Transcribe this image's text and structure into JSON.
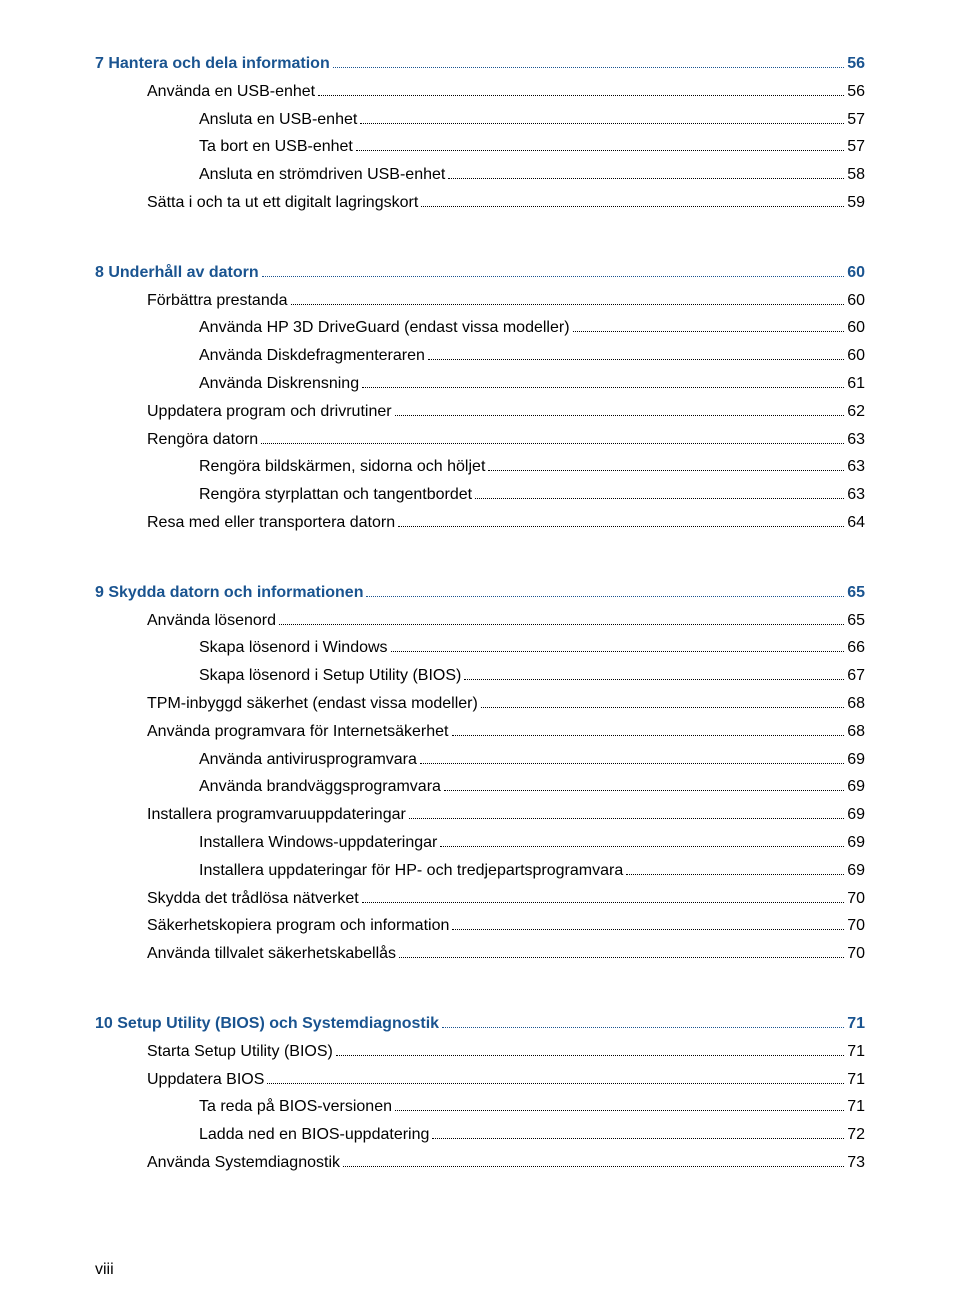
{
  "colors": {
    "chapter": "#1a5490",
    "text": "#000000",
    "background": "#ffffff"
  },
  "typography": {
    "font_family": "Arial",
    "font_size_pt": 12,
    "chapter_weight": "bold"
  },
  "page_footer": "viii",
  "entries": [
    {
      "level": 0,
      "text": "7  Hantera och dela information",
      "page": "56",
      "gap_before": false
    },
    {
      "level": 1,
      "text": "Använda en USB-enhet",
      "page": "56"
    },
    {
      "level": 2,
      "text": "Ansluta en USB-enhet",
      "page": "57"
    },
    {
      "level": 2,
      "text": "Ta bort en USB-enhet",
      "page": "57"
    },
    {
      "level": 2,
      "text": "Ansluta en strömdriven USB-enhet",
      "page": "58"
    },
    {
      "level": 1,
      "text": "Sätta i och ta ut ett digitalt lagringskort",
      "page": "59"
    },
    {
      "level": 0,
      "text": "8  Underhåll av datorn",
      "page": "60",
      "gap_before": true
    },
    {
      "level": 1,
      "text": "Förbättra prestanda",
      "page": "60"
    },
    {
      "level": 2,
      "text": "Använda HP 3D DriveGuard (endast vissa modeller)",
      "page": "60"
    },
    {
      "level": 2,
      "text": "Använda Diskdefragmenteraren",
      "page": "60"
    },
    {
      "level": 2,
      "text": "Använda Diskrensning",
      "page": "61"
    },
    {
      "level": 1,
      "text": "Uppdatera program och drivrutiner",
      "page": "62"
    },
    {
      "level": 1,
      "text": "Rengöra datorn",
      "page": "63"
    },
    {
      "level": 2,
      "text": "Rengöra bildskärmen, sidorna och höljet",
      "page": "63"
    },
    {
      "level": 2,
      "text": "Rengöra styrplattan och tangentbordet",
      "page": "63"
    },
    {
      "level": 1,
      "text": "Resa med eller transportera datorn",
      "page": "64"
    },
    {
      "level": 0,
      "text": "9  Skydda datorn och informationen",
      "page": "65",
      "gap_before": true
    },
    {
      "level": 1,
      "text": "Använda lösenord",
      "page": "65"
    },
    {
      "level": 2,
      "text": "Skapa lösenord i Windows",
      "page": "66"
    },
    {
      "level": 2,
      "text": "Skapa lösenord i Setup Utility (BIOS)",
      "page": "67"
    },
    {
      "level": 1,
      "text": "TPM-inbyggd säkerhet (endast vissa modeller)",
      "page": "68"
    },
    {
      "level": 1,
      "text": "Använda programvara för Internetsäkerhet",
      "page": "68"
    },
    {
      "level": 2,
      "text": "Använda antivirusprogramvara",
      "page": "69"
    },
    {
      "level": 2,
      "text": "Använda brandväggsprogramvara",
      "page": "69"
    },
    {
      "level": 1,
      "text": "Installera programvaruuppdateringar",
      "page": "69"
    },
    {
      "level": 2,
      "text": "Installera Windows-uppdateringar",
      "page": "69"
    },
    {
      "level": 2,
      "text": "Installera uppdateringar för HP- och tredjepartsprogramvara",
      "page": "69"
    },
    {
      "level": 1,
      "text": "Skydda det trådlösa nätverket",
      "page": "70"
    },
    {
      "level": 1,
      "text": "Säkerhetskopiera program och information",
      "page": "70"
    },
    {
      "level": 1,
      "text": "Använda tillvalet säkerhetskabellås",
      "page": "70"
    },
    {
      "level": 0,
      "text": "10  Setup Utility (BIOS) och Systemdiagnostik",
      "page": "71",
      "gap_before": true
    },
    {
      "level": 1,
      "text": "Starta Setup Utility (BIOS)",
      "page": "71"
    },
    {
      "level": 1,
      "text": "Uppdatera BIOS",
      "page": "71"
    },
    {
      "level": 2,
      "text": "Ta reda på BIOS-versionen",
      "page": "71"
    },
    {
      "level": 2,
      "text": "Ladda ned en BIOS-uppdatering",
      "page": "72"
    },
    {
      "level": 1,
      "text": "Använda Systemdiagnostik",
      "page": "73"
    }
  ]
}
